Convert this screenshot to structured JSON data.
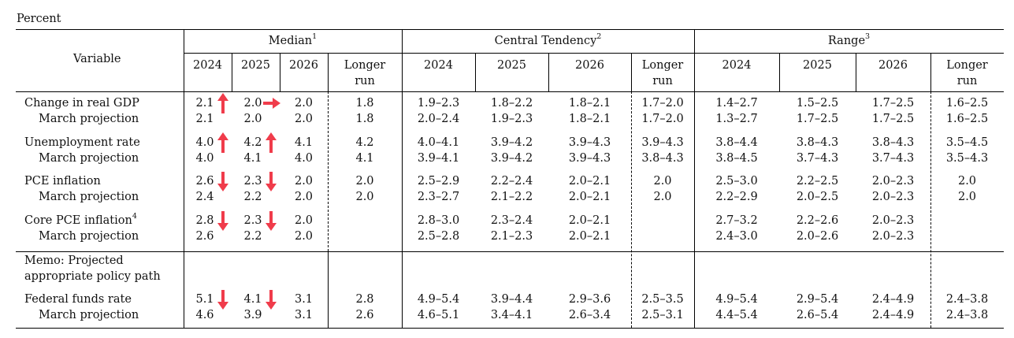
{
  "unit_label": "Percent",
  "header": {
    "variable": "Variable",
    "groups": [
      {
        "title": "Median",
        "note": "1"
      },
      {
        "title": "Central Tendency",
        "note": "2"
      },
      {
        "title": "Range",
        "note": "3"
      }
    ],
    "years": [
      "2024",
      "2025",
      "2026"
    ],
    "longer_run_1": "Longer",
    "longer_run_2": "run"
  },
  "rows": [
    {
      "label": "Change in real GDP",
      "note": "",
      "cells": [
        "2.1",
        "2.0",
        "2.0",
        "1.8",
        "1.9–2.3",
        "1.8–2.2",
        "1.8–2.1",
        "1.7–2.0",
        "1.4–2.7",
        "1.5–2.5",
        "1.7–2.5",
        "1.6–2.5"
      ]
    },
    {
      "label": "March projection",
      "note": "",
      "cells": [
        "2.1",
        "2.0",
        "2.0",
        "1.8",
        "2.0–2.4",
        "1.9–2.3",
        "1.8–2.1",
        "1.7–2.0",
        "1.3–2.7",
        "1.7–2.5",
        "1.7–2.5",
        "1.6–2.5"
      ]
    },
    {
      "label": "Unemployment rate",
      "note": "",
      "cells": [
        "4.0",
        "4.2",
        "4.1",
        "4.2",
        "4.0–4.1",
        "3.9–4.2",
        "3.9–4.3",
        "3.9–4.3",
        "3.8–4.4",
        "3.8–4.3",
        "3.8–4.3",
        "3.5–4.5"
      ]
    },
    {
      "label": "March projection",
      "note": "",
      "cells": [
        "4.0",
        "4.1",
        "4.0",
        "4.1",
        "3.9–4.1",
        "3.9–4.2",
        "3.9–4.3",
        "3.8–4.3",
        "3.8–4.5",
        "3.7–4.3",
        "3.7–4.3",
        "3.5–4.3"
      ]
    },
    {
      "label": "PCE inflation",
      "note": "",
      "cells": [
        "2.6",
        "2.3",
        "2.0",
        "2.0",
        "2.5–2.9",
        "2.2–2.4",
        "2.0–2.1",
        "2.0",
        "2.5–3.0",
        "2.2–2.5",
        "2.0–2.3",
        "2.0"
      ]
    },
    {
      "label": "March projection",
      "note": "",
      "cells": [
        "2.4",
        "2.2",
        "2.0",
        "2.0",
        "2.3–2.7",
        "2.1–2.2",
        "2.0–2.1",
        "2.0",
        "2.2–2.9",
        "2.0–2.5",
        "2.0–2.3",
        "2.0"
      ]
    },
    {
      "label": "Core PCE inflation",
      "note": "4",
      "cells": [
        "2.8",
        "2.3",
        "2.0",
        "",
        "2.8–3.0",
        "2.3–2.4",
        "2.0–2.1",
        "",
        "2.7–3.2",
        "2.2–2.6",
        "2.0–2.3",
        ""
      ]
    },
    {
      "label": "March projection",
      "note": "",
      "cells": [
        "2.6",
        "2.2",
        "2.0",
        "",
        "2.5–2.8",
        "2.1–2.3",
        "2.0–2.1",
        "",
        "2.4–3.0",
        "2.0–2.6",
        "2.0–2.3",
        ""
      ]
    },
    {
      "label": "Federal funds rate",
      "note": "",
      "cells": [
        "5.1",
        "4.1",
        "3.1",
        "2.8",
        "4.9–5.4",
        "3.9–4.4",
        "2.9–3.6",
        "2.5–3.5",
        "4.9–5.4",
        "2.9–5.4",
        "2.4–4.9",
        "2.4–3.8"
      ]
    },
    {
      "label": "March projection",
      "note": "",
      "cells": [
        "4.6",
        "3.9",
        "3.1",
        "2.6",
        "4.6–5.1",
        "3.4–4.1",
        "2.6–3.4",
        "2.5–3.1",
        "4.4–5.4",
        "2.6–5.4",
        "2.4–4.9",
        "2.4–3.8"
      ]
    }
  ],
  "memo": {
    "line1": "Memo: Projected",
    "line2": "appropriate policy path"
  },
  "arrows": [
    {
      "row": 0,
      "col": 0,
      "dir": "up"
    },
    {
      "row": 0,
      "col": 1,
      "dir": "right"
    },
    {
      "row": 2,
      "col": 0,
      "dir": "up"
    },
    {
      "row": 2,
      "col": 1,
      "dir": "up"
    },
    {
      "row": 4,
      "col": 0,
      "dir": "down"
    },
    {
      "row": 4,
      "col": 1,
      "dir": "down"
    },
    {
      "row": 6,
      "col": 0,
      "dir": "down"
    },
    {
      "row": 6,
      "col": 1,
      "dir": "down"
    },
    {
      "row": 8,
      "col": 0,
      "dir": "down"
    },
    {
      "row": 8,
      "col": 1,
      "dir": "down"
    }
  ],
  "colors": {
    "arrow": "#f03c4b",
    "rule": "#000000",
    "text": "#111111"
  }
}
